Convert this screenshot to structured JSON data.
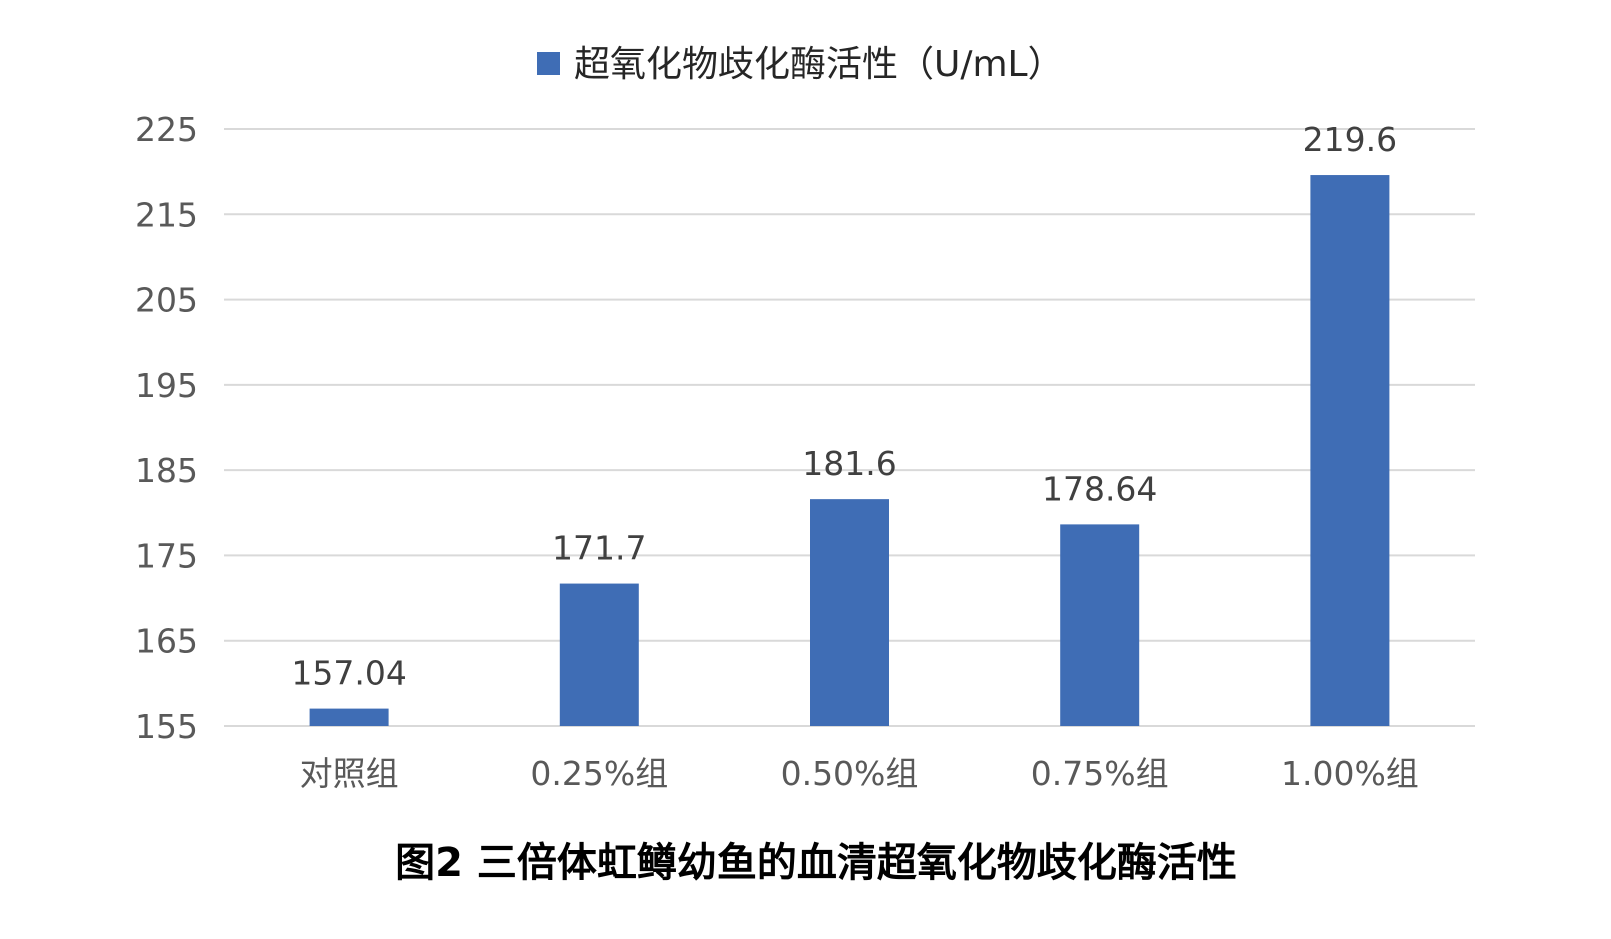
{
  "chart_data": {
    "type": "bar",
    "title": "",
    "caption": "图2 三倍体虹鳟幼鱼的血清超氧化物歧化酶活性",
    "xlabel": "",
    "ylabel": "",
    "categories": [
      "对照组",
      "0.25%组",
      "0.50%组",
      "0.75%组",
      "1.00%组"
    ],
    "series": [
      {
        "name": "超氧化物歧化酶活性（U/mL）",
        "values": [
          157.04,
          171.7,
          181.6,
          178.64,
          219.6
        ],
        "value_labels": [
          "157.04",
          "171.7",
          "181.6",
          "178.64",
          "219.6"
        ],
        "color": "#3F6DB5"
      }
    ],
    "ylim": [
      155,
      225
    ],
    "yticks": [
      155,
      165,
      175,
      185,
      195,
      205,
      215,
      225
    ],
    "grid": true,
    "legend_position": "top"
  }
}
